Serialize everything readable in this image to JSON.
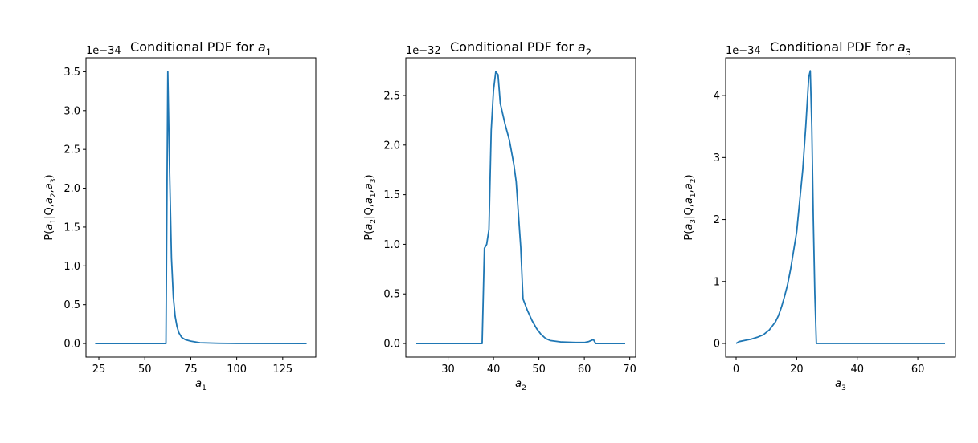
{
  "chart_data": [
    {
      "type": "line",
      "title": "Conditional PDF for a_1",
      "xlabel": "a_1",
      "ylabel": "P(a_1|Q,a_2,a_3)",
      "offset_text": "1e−34",
      "xlim": [
        18,
        143
      ],
      "ylim": [
        -0.175,
        3.68
      ],
      "xticks": [
        25,
        50,
        75,
        100,
        125
      ],
      "xtick_labels": [
        "25",
        "50",
        "75",
        "100",
        "125"
      ],
      "yticks": [
        0.0,
        0.5,
        1.0,
        1.5,
        2.0,
        2.5,
        3.0,
        3.5
      ],
      "ytick_labels": [
        "0.0",
        "0.5",
        "1.0",
        "1.5",
        "2.0",
        "2.5",
        "3.0",
        "3.5"
      ],
      "x": [
        23,
        61.5,
        62.5,
        63.5,
        64.5,
        65.5,
        66.5,
        67.5,
        68.5,
        70,
        72,
        75,
        80,
        90,
        100,
        138
      ],
      "y": [
        0,
        0,
        3.5,
        2.2,
        1.1,
        0.6,
        0.35,
        0.22,
        0.14,
        0.08,
        0.05,
        0.03,
        0.01,
        0.003,
        0.001,
        0
      ]
    },
    {
      "type": "line",
      "title": "Conditional PDF for a_2",
      "xlabel": "a_2",
      "ylabel": "P(a_2|Q,a_1,a_3)",
      "offset_text": "1e−32",
      "xlim": [
        20.7,
        71.3
      ],
      "ylim": [
        -0.137,
        2.88
      ],
      "xticks": [
        30,
        40,
        50,
        60,
        70
      ],
      "xtick_labels": [
        "30",
        "40",
        "50",
        "60",
        "70"
      ],
      "yticks": [
        0.0,
        0.5,
        1.0,
        1.5,
        2.0,
        2.5
      ],
      "ytick_labels": [
        "0.0",
        "0.5",
        "1.0",
        "1.5",
        "2.0",
        "2.5"
      ],
      "x": [
        23,
        37.5,
        38,
        38.5,
        39,
        39.5,
        40,
        40.5,
        41,
        41.5,
        42.5,
        43.5,
        44.5,
        45,
        45.5,
        46,
        46.5,
        47.5,
        48.5,
        49.5,
        50.5,
        51.5,
        52.5,
        55,
        58,
        60,
        61,
        62,
        62.5,
        63,
        69
      ],
      "y": [
        0,
        0,
        0.96,
        1.0,
        1.15,
        2.15,
        2.55,
        2.74,
        2.71,
        2.42,
        2.22,
        2.05,
        1.8,
        1.63,
        1.3,
        0.97,
        0.45,
        0.33,
        0.23,
        0.15,
        0.09,
        0.05,
        0.03,
        0.015,
        0.01,
        0.01,
        0.02,
        0.04,
        0.0,
        0,
        0
      ]
    },
    {
      "type": "line",
      "title": "Conditional PDF for a_3",
      "xlabel": "a_3",
      "ylabel": "P(a_3|Q,a_1,a_2)",
      "offset_text": "1e−34",
      "xlim": [
        -3.45,
        72.45
      ],
      "ylim": [
        -0.22,
        4.61
      ],
      "xticks": [
        0,
        20,
        40,
        60
      ],
      "xtick_labels": [
        "0",
        "20",
        "40",
        "60"
      ],
      "yticks": [
        0,
        1,
        2,
        3,
        4
      ],
      "ytick_labels": [
        "0",
        "1",
        "2",
        "3",
        "4"
      ],
      "x": [
        0,
        1,
        3,
        5,
        7,
        9,
        11,
        13,
        14,
        15,
        16,
        17,
        18,
        19,
        20,
        21,
        22,
        23,
        24,
        24.5,
        25,
        25.5,
        26,
        26.5,
        69
      ],
      "y": [
        0,
        0.03,
        0.05,
        0.07,
        0.1,
        0.14,
        0.22,
        0.35,
        0.45,
        0.59,
        0.76,
        0.95,
        1.2,
        1.5,
        1.8,
        2.3,
        2.8,
        3.5,
        4.3,
        4.4,
        3.5,
        2.0,
        0.8,
        0.0,
        0
      ]
    }
  ]
}
